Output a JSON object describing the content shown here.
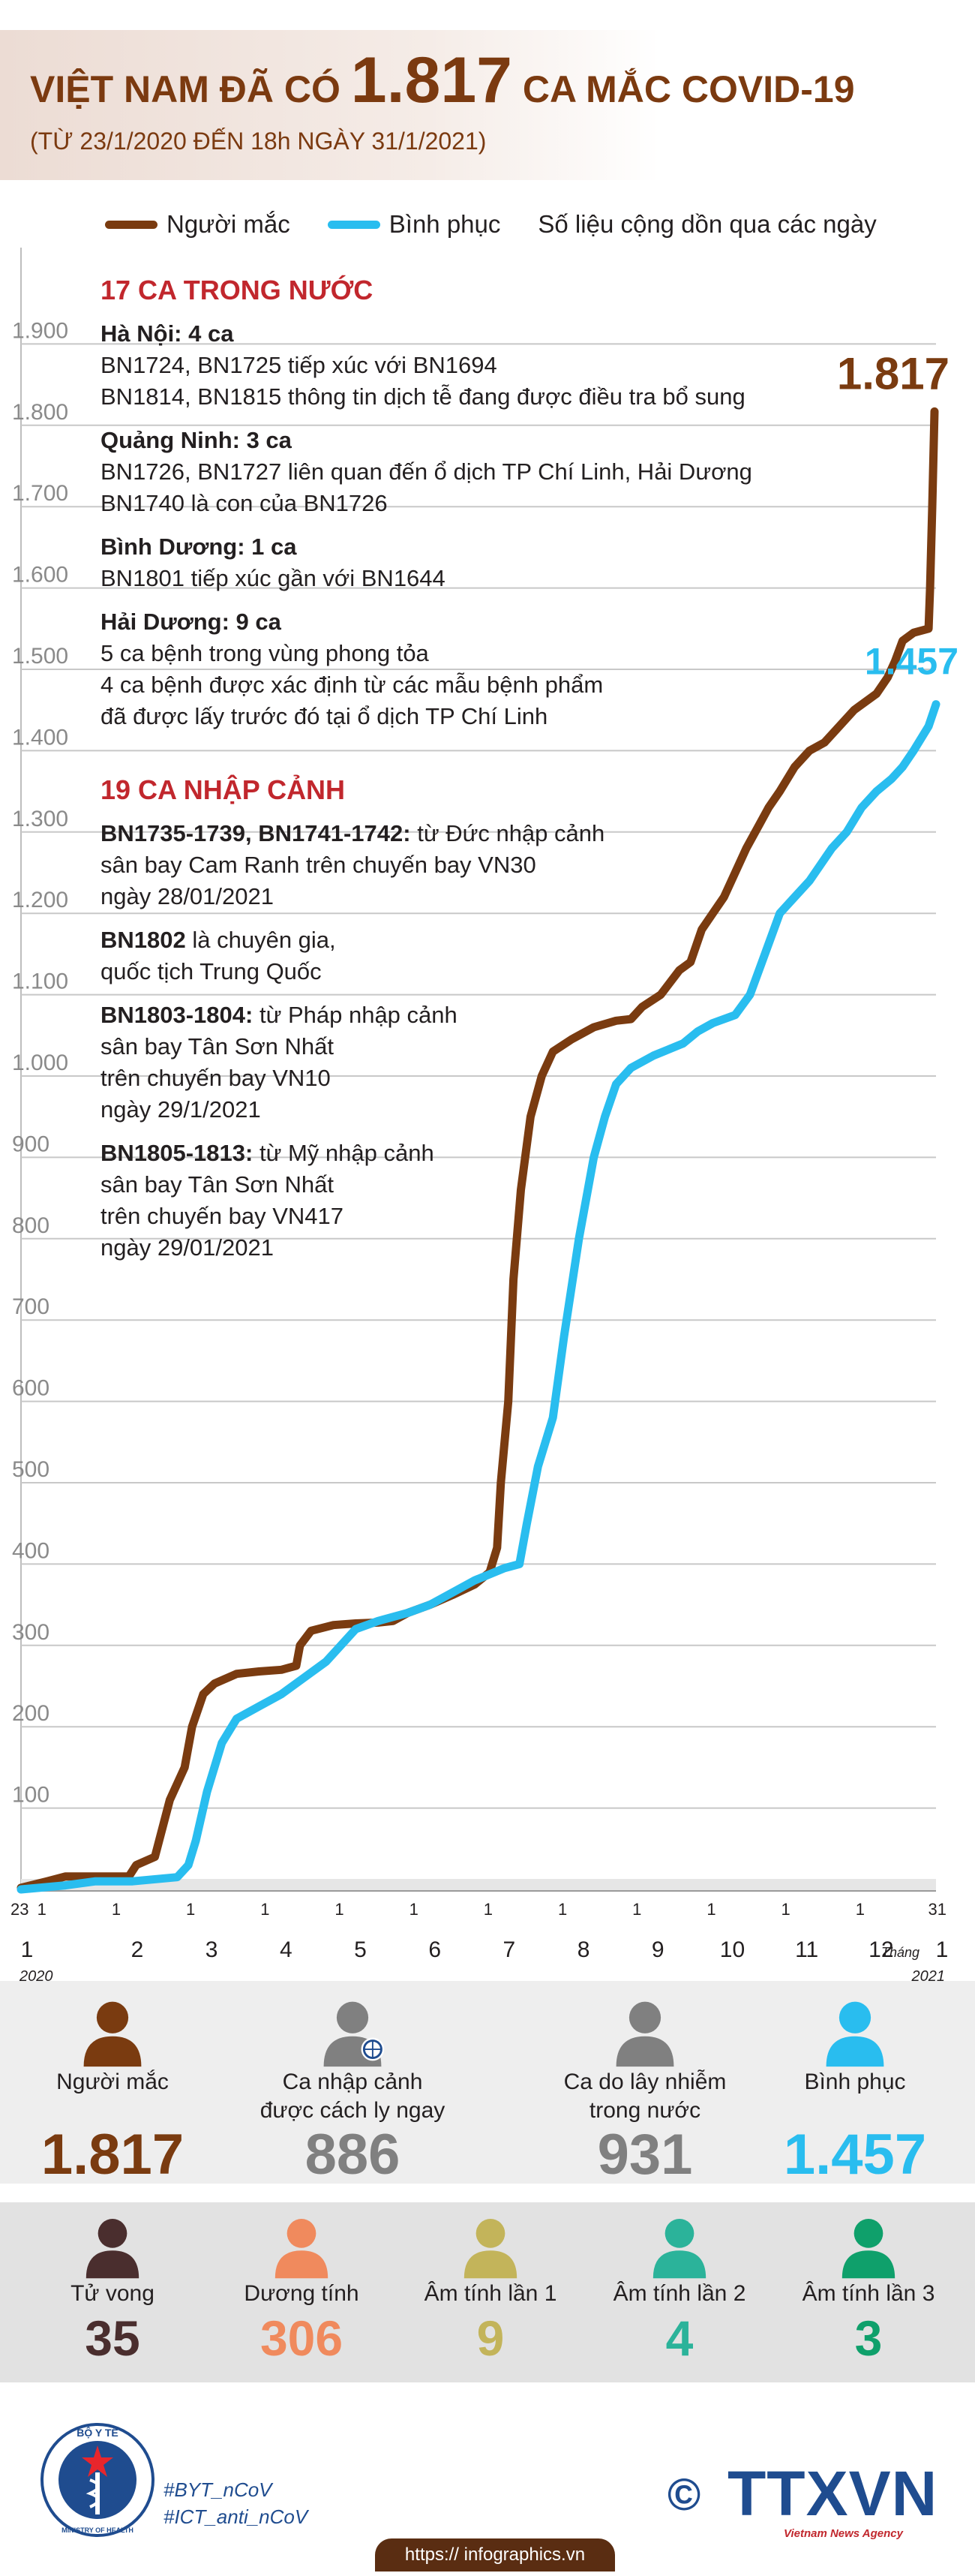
{
  "header": {
    "title_pre": "VIỆT NAM ĐÃ CÓ ",
    "title_num": "1.817",
    "title_post": " CA MẮC COVID-19",
    "subtitle": "(TỪ 23/1/2020 ĐẾN 18h NGÀY 31/1/2021)"
  },
  "legend": {
    "infected": "Người mắc",
    "recovered": "Bình phục",
    "note": "Số liệu cộng dồn qua các ngày"
  },
  "colors": {
    "infected": "#7a3b10",
    "recovered": "#29bdef",
    "red": "#c1272d",
    "grey": "#808080"
  },
  "chart_data": {
    "type": "line",
    "title": "Việt Nam đã có 1.817 ca mắc COVID-19",
    "ylim": [
      0,
      2000
    ],
    "yticks": [
      100,
      200,
      300,
      400,
      500,
      600,
      700,
      800,
      900,
      1000,
      1100,
      1200,
      1300,
      1400,
      1500,
      1600,
      1700,
      1800,
      1900
    ],
    "ytick_labels": [
      "100",
      "200",
      "300",
      "400",
      "500",
      "600",
      "700",
      "800",
      "900",
      "1.000",
      "1.100",
      "1.200",
      "1.300",
      "1.400",
      "1.500",
      "1.600",
      "1.700",
      "1.800",
      "1.900"
    ],
    "x_unit": "month index (0 = 23/1/2020, 12.3 = 31/1/2021)",
    "xlim": [
      0,
      12.3
    ],
    "x_month_ticks": [
      0.28,
      1.28,
      2.28,
      3.28,
      4.28,
      5.28,
      6.28,
      7.28,
      8.28,
      9.28,
      10.28,
      11.28,
      12.28
    ],
    "x_month_labels": [
      "1",
      "2",
      "3",
      "4",
      "5",
      "6",
      "7",
      "8",
      "9",
      "10",
      "11",
      "12",
      "1"
    ],
    "x_day_ticks": [
      0,
      0.28,
      1.28,
      2.28,
      3.28,
      4.28,
      5.28,
      6.28,
      7.28,
      8.28,
      9.28,
      10.28,
      11.28,
      12.28
    ],
    "x_day_labels": [
      "23",
      "1",
      "1",
      "1",
      "1",
      "1",
      "1",
      "1",
      "1",
      "1",
      "1",
      "1",
      "1",
      "31"
    ],
    "year_start": "2020",
    "year_end": "2021",
    "month_word": "Tháng",
    "series": [
      {
        "name": "Người mắc",
        "final_label": "1.817",
        "points": [
          [
            0,
            2
          ],
          [
            0.35,
            10
          ],
          [
            0.6,
            16
          ],
          [
            1.3,
            16
          ],
          [
            1.45,
            16
          ],
          [
            1.55,
            30
          ],
          [
            1.8,
            40
          ],
          [
            2.0,
            110
          ],
          [
            2.2,
            150
          ],
          [
            2.3,
            200
          ],
          [
            2.45,
            240
          ],
          [
            2.6,
            253
          ],
          [
            2.9,
            265
          ],
          [
            3.2,
            268
          ],
          [
            3.5,
            270
          ],
          [
            3.7,
            275
          ],
          [
            3.75,
            300
          ],
          [
            3.9,
            318
          ],
          [
            4.2,
            325
          ],
          [
            4.5,
            327
          ],
          [
            4.8,
            328
          ],
          [
            5.0,
            330
          ],
          [
            5.2,
            340
          ],
          [
            5.5,
            350
          ],
          [
            5.8,
            362
          ],
          [
            6.1,
            375
          ],
          [
            6.3,
            390
          ],
          [
            6.4,
            420
          ],
          [
            6.45,
            500
          ],
          [
            6.55,
            600
          ],
          [
            6.62,
            750
          ],
          [
            6.72,
            860
          ],
          [
            6.85,
            950
          ],
          [
            7.0,
            1000
          ],
          [
            7.15,
            1030
          ],
          [
            7.4,
            1045
          ],
          [
            7.7,
            1060
          ],
          [
            8.0,
            1068
          ],
          [
            8.2,
            1070
          ],
          [
            8.35,
            1085
          ],
          [
            8.6,
            1100
          ],
          [
            8.85,
            1130
          ],
          [
            9.0,
            1140
          ],
          [
            9.15,
            1180
          ],
          [
            9.3,
            1200
          ],
          [
            9.45,
            1220
          ],
          [
            9.6,
            1250
          ],
          [
            9.75,
            1280
          ],
          [
            9.9,
            1305
          ],
          [
            10.05,
            1330
          ],
          [
            10.2,
            1350
          ],
          [
            10.4,
            1380
          ],
          [
            10.6,
            1400
          ],
          [
            10.8,
            1410
          ],
          [
            11.0,
            1430
          ],
          [
            11.2,
            1450
          ],
          [
            11.5,
            1470
          ],
          [
            11.65,
            1490
          ],
          [
            11.75,
            1510
          ],
          [
            11.85,
            1535
          ],
          [
            12.0,
            1545
          ],
          [
            12.2,
            1550
          ],
          [
            12.22,
            1600
          ],
          [
            12.25,
            1700
          ],
          [
            12.28,
            1817
          ]
        ]
      },
      {
        "name": "Bình phục",
        "final_label": "1.457",
        "points": [
          [
            0,
            0
          ],
          [
            0.6,
            5
          ],
          [
            1.0,
            10
          ],
          [
            1.5,
            10
          ],
          [
            2.1,
            15
          ],
          [
            2.25,
            30
          ],
          [
            2.35,
            60
          ],
          [
            2.5,
            120
          ],
          [
            2.7,
            180
          ],
          [
            2.9,
            210
          ],
          [
            3.2,
            225
          ],
          [
            3.5,
            240
          ],
          [
            3.8,
            260
          ],
          [
            4.1,
            280
          ],
          [
            4.3,
            300
          ],
          [
            4.5,
            320
          ],
          [
            4.8,
            330
          ],
          [
            5.2,
            340
          ],
          [
            5.5,
            350
          ],
          [
            5.8,
            365
          ],
          [
            6.1,
            380
          ],
          [
            6.5,
            395
          ],
          [
            6.7,
            400
          ],
          [
            6.8,
            450
          ],
          [
            6.95,
            520
          ],
          [
            7.15,
            580
          ],
          [
            7.3,
            680
          ],
          [
            7.5,
            800
          ],
          [
            7.7,
            900
          ],
          [
            7.85,
            950
          ],
          [
            8.0,
            990
          ],
          [
            8.2,
            1010
          ],
          [
            8.5,
            1025
          ],
          [
            8.9,
            1040
          ],
          [
            9.1,
            1055
          ],
          [
            9.3,
            1065
          ],
          [
            9.6,
            1075
          ],
          [
            9.8,
            1100
          ],
          [
            10.0,
            1150
          ],
          [
            10.2,
            1200
          ],
          [
            10.4,
            1220
          ],
          [
            10.6,
            1240
          ],
          [
            10.9,
            1280
          ],
          [
            11.1,
            1300
          ],
          [
            11.3,
            1330
          ],
          [
            11.5,
            1350
          ],
          [
            11.7,
            1365
          ],
          [
            11.85,
            1380
          ],
          [
            12.0,
            1400
          ],
          [
            12.2,
            1430
          ],
          [
            12.3,
            1457
          ]
        ]
      }
    ]
  },
  "notes": {
    "domestic_title": "17 CA TRONG NƯỚC",
    "domestic": [
      {
        "head": "Hà Nội: 4 ca",
        "lines": [
          "BN1724, BN1725 tiếp xúc với BN1694",
          "BN1814, BN1815 thông tin dịch tễ đang được điều tra bổ sung"
        ]
      },
      {
        "head": "Quảng Ninh: 3 ca",
        "lines": [
          "BN1726, BN1727 liên quan đến ổ dịch TP Chí Linh, Hải Dương",
          "BN1740 là con của BN1726"
        ]
      },
      {
        "head": "Bình Dương: 1 ca",
        "lines": [
          "BN1801 tiếp xúc gần với BN1644"
        ]
      },
      {
        "head": "Hải Dương: 9 ca",
        "lines": [
          "5 ca bệnh trong vùng phong tỏa",
          "4 ca bệnh được xác định từ các mẫu bệnh phẩm",
          "đã được lấy trước đó tại ổ dịch TP Chí Linh"
        ]
      }
    ],
    "import_title": "19 CA NHẬP CẢNH",
    "imported": [
      {
        "head": "BN1735-1739, BN1741-1742:",
        "first": " từ Đức nhập cảnh",
        "lines": [
          "sân bay Cam Ranh trên chuyến bay VN30",
          "ngày 28/01/2021"
        ]
      },
      {
        "head": "BN1802",
        "first": " là chuyên gia,",
        "lines": [
          "quốc tịch Trung Quốc"
        ]
      },
      {
        "head": "BN1803-1804:",
        "first": " từ Pháp nhập cảnh",
        "lines": [
          "sân bay Tân Sơn Nhất",
          "trên chuyến bay VN10",
          "ngày 29/1/2021"
        ]
      },
      {
        "head": "BN1805-1813:",
        "first": " từ Mỹ nhập cảnh",
        "lines": [
          "sân bay Tân Sơn Nhất",
          "trên chuyến bay VN417",
          "ngày 29/01/2021"
        ]
      }
    ]
  },
  "stats1": [
    {
      "label": "Người mắc",
      "value": "1.817",
      "color": "#7a3b10"
    },
    {
      "label": "Ca nhập cảnh\nđược cách ly ngay",
      "value": "886",
      "color": "#808080"
    },
    {
      "label": "Ca do lây nhiễm\ntrong nước",
      "value": "931",
      "color": "#808080"
    },
    {
      "label": "Bình phục",
      "value": "1.457",
      "color": "#29bdef"
    }
  ],
  "stats2": [
    {
      "label": "Tử vong",
      "value": "35",
      "color": "#4a2e2e",
      "icon": "#4a2e2e"
    },
    {
      "label": "Dương tính",
      "value": "306",
      "color": "#f08a5d",
      "icon": "#f08a5d"
    },
    {
      "label": "Âm tính lần 1",
      "value": "9",
      "color": "#c3b45a",
      "icon": "#c3b45a"
    },
    {
      "label": "Âm tính lần 2",
      "value": "4",
      "color": "#2bb39a",
      "icon": "#2bb39a"
    },
    {
      "label": "Âm tính lần 3",
      "value": "3",
      "color": "#0fa06b",
      "icon": "#0fa06b"
    }
  ],
  "footer": {
    "tag1": "#BYT_nCoV",
    "tag2": "#ICT_anti_nCoV",
    "url": "https:// infographics.vn",
    "copyright": "©",
    "brand": "TTXVN",
    "brand_sub": "Vietnam News Agency",
    "logo_text": "BỘ Y TẾ",
    "logo_sub": "MINISTRY OF HEALTH"
  }
}
